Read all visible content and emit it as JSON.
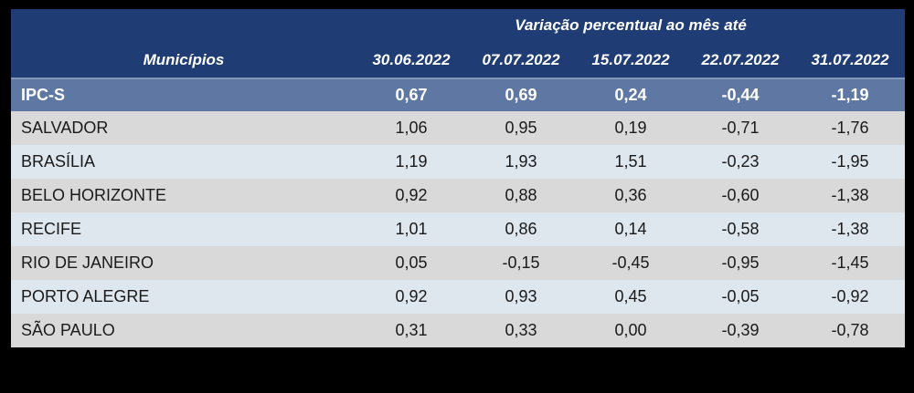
{
  "colors": {
    "page_background": "#000000",
    "header_bg": "#1F3D74",
    "ipcs_row_bg": "#5F78A3",
    "ipcs_row_top_border": "#8397BB",
    "row_gray": "#D9D9D9",
    "row_light_blue": "#DEE6EE",
    "header_text": "#FFFFFF",
    "body_text": "#1A1A1A"
  },
  "table": {
    "group_header": "Variação percentual ao mês até",
    "municipios_header": "Municípios",
    "columns": [
      "30.06.2022",
      "07.07.2022",
      "15.07.2022",
      "22.07.2022",
      "31.07.2022"
    ],
    "rows": [
      {
        "label": "IPC-S",
        "values": [
          "0,67",
          "0,69",
          "0,24",
          "-0,44",
          "-1,19"
        ]
      },
      {
        "label": "SALVADOR",
        "values": [
          "1,06",
          "0,95",
          "0,19",
          "-0,71",
          "-1,76"
        ]
      },
      {
        "label": "BRASÍLIA",
        "values": [
          "1,19",
          "1,93",
          "1,51",
          "-0,23",
          "-1,95"
        ]
      },
      {
        "label": "BELO HORIZONTE",
        "values": [
          "0,92",
          "0,88",
          "0,36",
          "-0,60",
          "-1,38"
        ]
      },
      {
        "label": "RECIFE",
        "values": [
          "1,01",
          "0,86",
          "0,14",
          "-0,58",
          "-1,38"
        ]
      },
      {
        "label": "RIO DE JANEIRO",
        "values": [
          "0,05",
          "-0,15",
          "-0,45",
          "-0,95",
          "-1,45"
        ]
      },
      {
        "label": "PORTO ALEGRE",
        "values": [
          "0,92",
          "0,93",
          "0,45",
          "-0,05",
          "-0,92"
        ]
      },
      {
        "label": "SÃO PAULO",
        "values": [
          "0,31",
          "0,33",
          "0,00",
          "-0,39",
          "-0,78"
        ]
      }
    ]
  },
  "chart_data": {
    "type": "table",
    "title": "Variação percentual ao mês até",
    "row_header": "Municípios",
    "categories": [
      "30.06.2022",
      "07.07.2022",
      "15.07.2022",
      "22.07.2022",
      "31.07.2022"
    ],
    "series": [
      {
        "name": "IPC-S",
        "values": [
          0.67,
          0.69,
          0.24,
          -0.44,
          -1.19
        ]
      },
      {
        "name": "SALVADOR",
        "values": [
          1.06,
          0.95,
          0.19,
          -0.71,
          -1.76
        ]
      },
      {
        "name": "BRASÍLIA",
        "values": [
          1.19,
          1.93,
          1.51,
          -0.23,
          -1.95
        ]
      },
      {
        "name": "BELO HORIZONTE",
        "values": [
          0.92,
          0.88,
          0.36,
          -0.6,
          -1.38
        ]
      },
      {
        "name": "RECIFE",
        "values": [
          1.01,
          0.86,
          0.14,
          -0.58,
          -1.38
        ]
      },
      {
        "name": "RIO DE JANEIRO",
        "values": [
          0.05,
          -0.15,
          -0.45,
          -0.95,
          -1.45
        ]
      },
      {
        "name": "PORTO ALEGRE",
        "values": [
          0.92,
          0.93,
          0.45,
          -0.05,
          -0.92
        ]
      },
      {
        "name": "SÃO PAULO",
        "values": [
          0.31,
          0.33,
          0.0,
          -0.39,
          -0.78
        ]
      }
    ],
    "layout": {
      "values_are_percent": true,
      "decimal_separator_displayed": ",",
      "first_row_highlighted": "IPC-S"
    }
  }
}
